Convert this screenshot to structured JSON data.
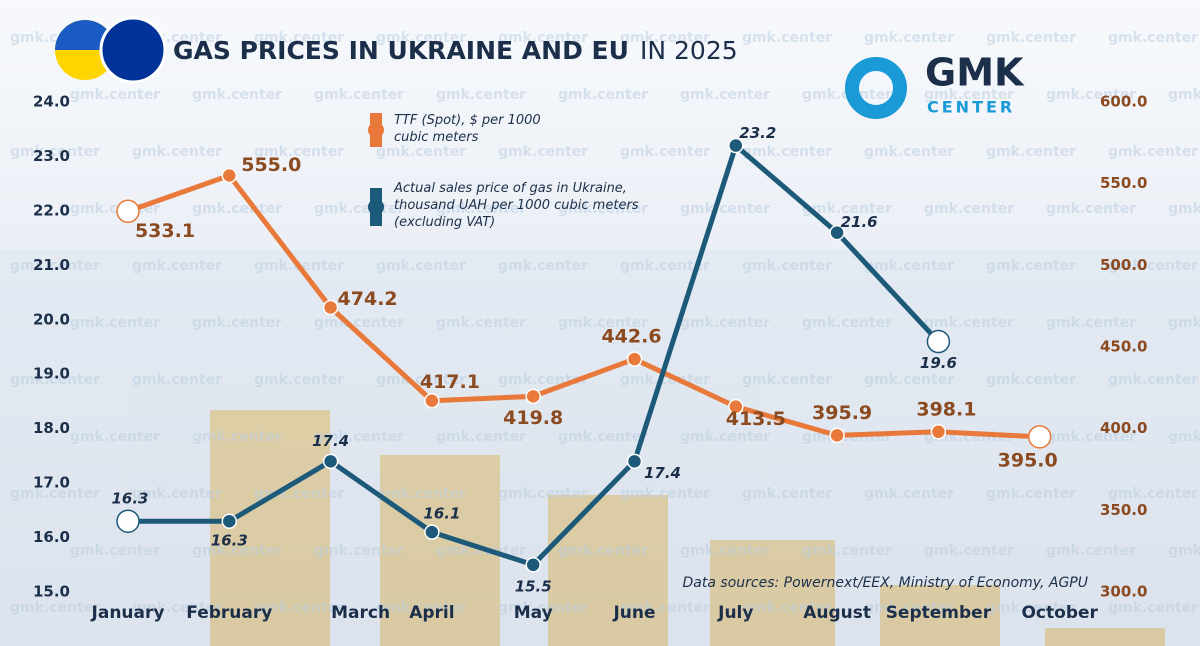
{
  "chart_data": {
    "type": "line",
    "title": "GAS PRICES IN UKRAINE AND EU",
    "title_suffix": "IN 2025",
    "logo": {
      "main": "GMK",
      "sub": "CENTER"
    },
    "watermark": "gmk.center",
    "source": "Data sources: Powernext/EEX, Ministry of Economy, AGPU",
    "categories": [
      "January",
      "February",
      "March",
      "April",
      "May",
      "June",
      "July",
      "August",
      "September",
      "October"
    ],
    "ylim": [
      15,
      24
    ],
    "yticks": [
      {
        "value": 15,
        "label": "15.0"
      },
      {
        "value": 16,
        "label": "16.0"
      },
      {
        "value": 17,
        "label": "17.0"
      },
      {
        "value": 18,
        "label": "18.0"
      },
      {
        "value": 19,
        "label": "19.0"
      },
      {
        "value": 20,
        "label": "20.0"
      },
      {
        "value": 21,
        "label": "21.0"
      },
      {
        "value": 22,
        "label": "22.0"
      },
      {
        "value": 23,
        "label": "23.0"
      },
      {
        "value": 24,
        "label": "24.0"
      }
    ],
    "y2lim": [
      300,
      600
    ],
    "y2ticks": [
      {
        "value": 300,
        "label": "300.0"
      },
      {
        "value": 350,
        "label": "350.0"
      },
      {
        "value": 400,
        "label": "400.0"
      },
      {
        "value": 450,
        "label": "450.0"
      },
      {
        "value": 500,
        "label": "500.0"
      },
      {
        "value": 550,
        "label": "550.0"
      },
      {
        "value": 600,
        "label": "600.0"
      }
    ],
    "series": [
      {
        "name": "TTF (Spot), $ per 1000 cubic meters",
        "color": "#e8793a",
        "axis": "y2",
        "values": [
          533.1,
          555.0,
          474.2,
          417.1,
          419.8,
          442.6,
          413.5,
          395.9,
          398.1,
          395.0
        ],
        "value_labels": [
          "533.1",
          "555.0",
          "474.2",
          "417.1",
          "419.8",
          "442.6",
          "413.5",
          "395.9",
          "398.1",
          "395.0"
        ]
      },
      {
        "name": "Actual sales price of gas in Ukraine, thousand UAH per 1000 cubic meters (excluding VAT)",
        "color": "#1d5a7a",
        "values": [
          16.3,
          16.3,
          17.4,
          16.1,
          15.5,
          17.4,
          23.2,
          21.6,
          19.6,
          null
        ]
      }
    ]
  }
}
